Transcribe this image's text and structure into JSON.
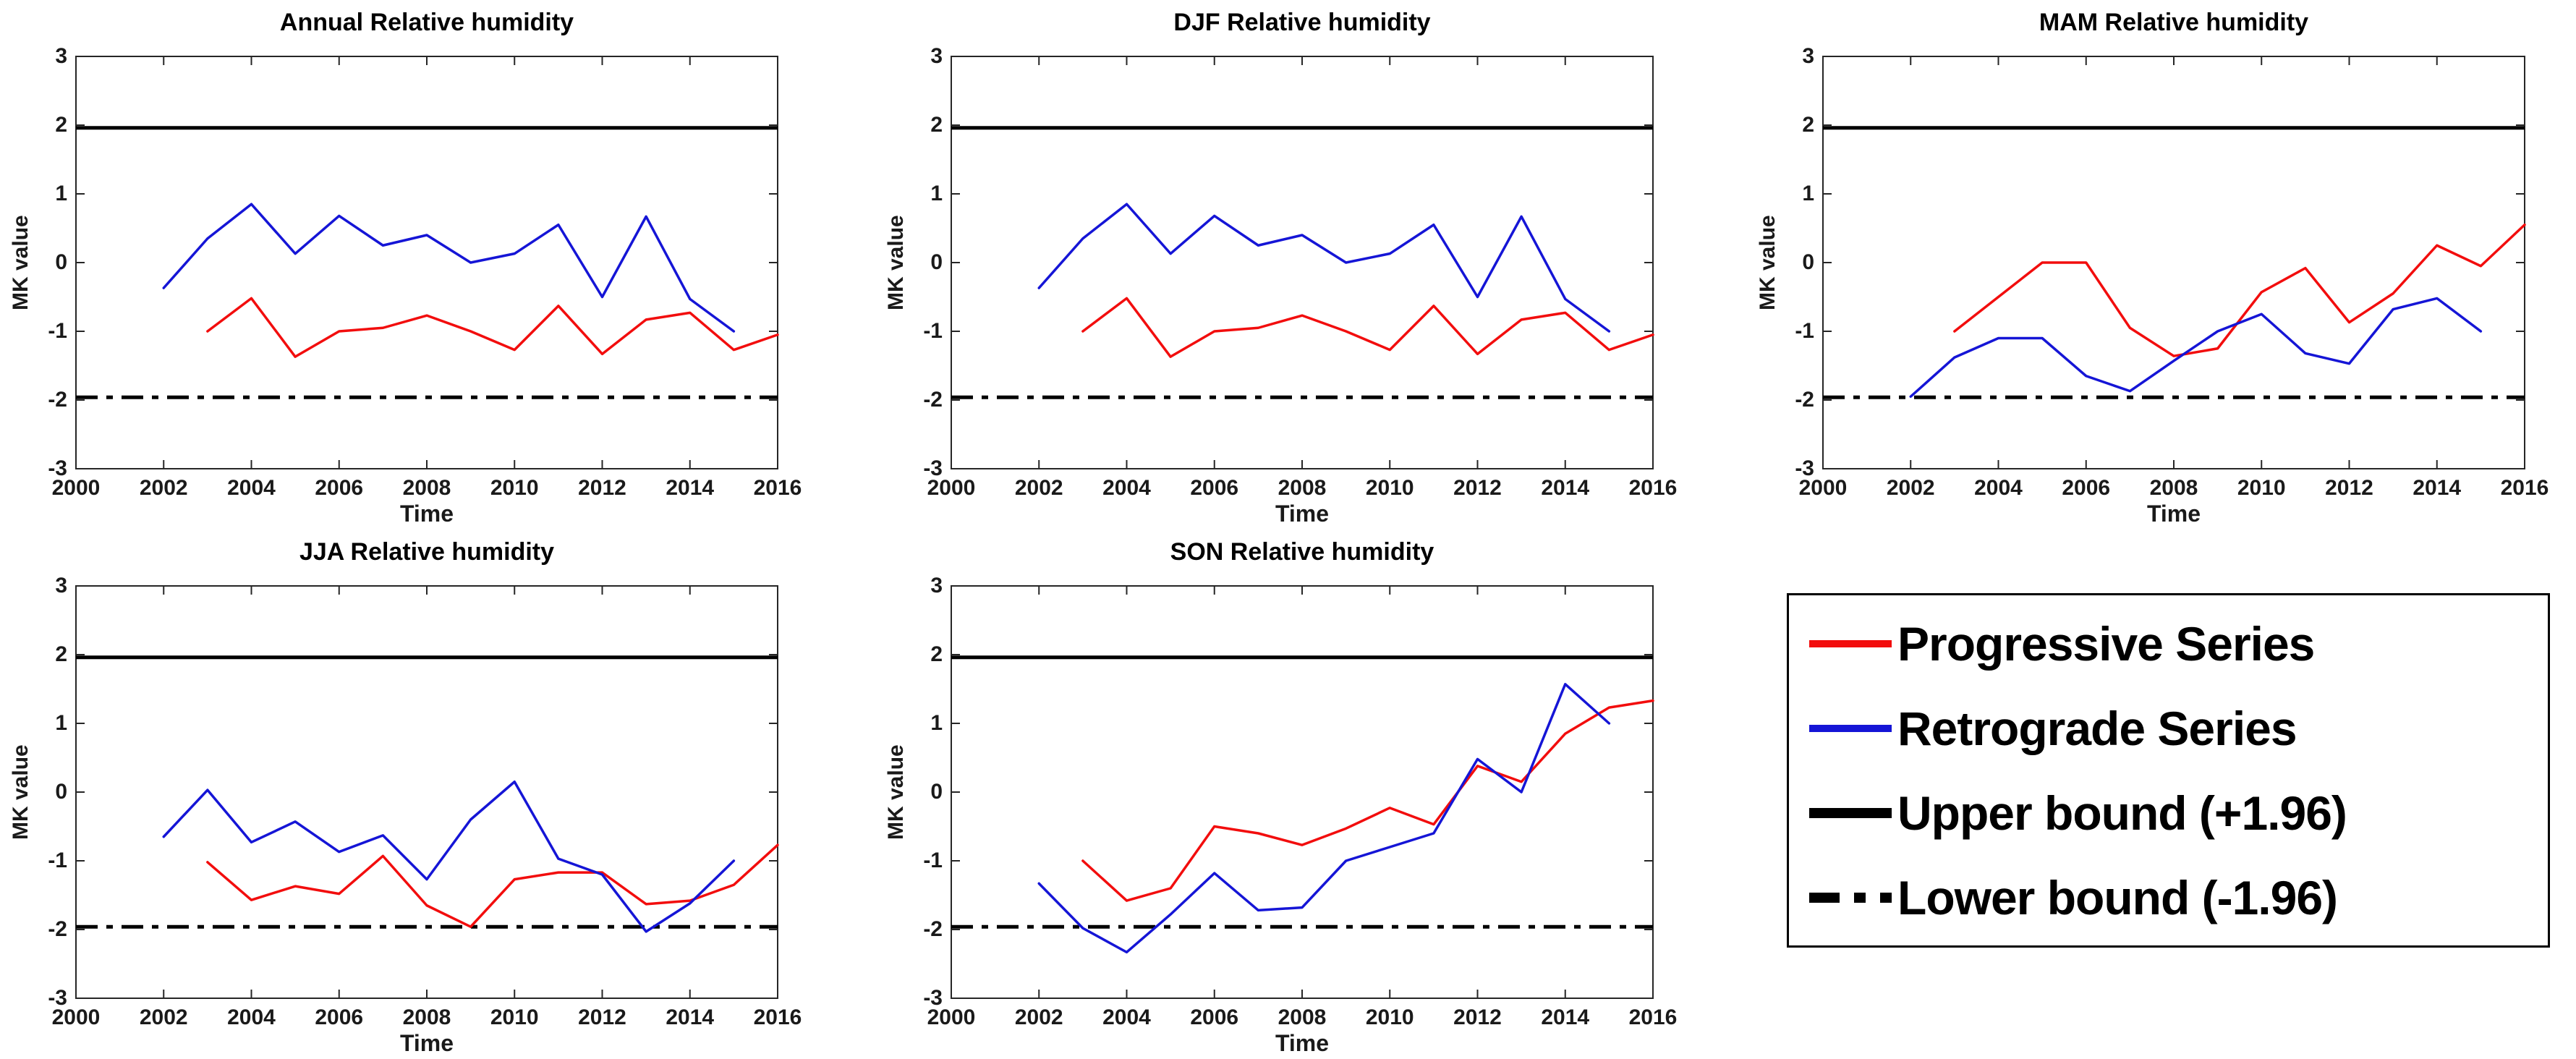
{
  "figure": {
    "background": "#ffffff",
    "axis_color": "#262626",
    "xlabel": "Time",
    "ylabel": "MK value"
  },
  "chart_data": [
    {
      "type": "line",
      "title": "Annual Relative humidity",
      "xlabel": "Time",
      "ylabel": "MK value",
      "xlim": [
        2000,
        2016
      ],
      "ylim": [
        -3,
        3
      ],
      "x_ticks": [
        "2000",
        "2002",
        "2004",
        "2006",
        "2008",
        "2010",
        "2012",
        "2014",
        "2016"
      ],
      "y_ticks": [
        "3",
        "2",
        "1",
        "0",
        "-1",
        "-2",
        "-3"
      ],
      "grid": false,
      "upper_bound": 1.96,
      "lower_bound": -1.96,
      "series": [
        {
          "name": "Progressive Series",
          "color": "#f20d0d",
          "x": [
            2003,
            2004,
            2005,
            2006,
            2007,
            2008,
            2009,
            2010,
            2011,
            2012,
            2013,
            2014,
            2015,
            2016
          ],
          "values": [
            -1.0,
            -0.52,
            -1.37,
            -1.0,
            -0.95,
            -0.77,
            -1.0,
            -1.27,
            -0.63,
            -1.33,
            -0.83,
            -0.73,
            -1.27,
            -1.05
          ]
        },
        {
          "name": "Retrograde Series",
          "color": "#1515d6",
          "x": [
            2002,
            2003,
            2004,
            2005,
            2006,
            2007,
            2008,
            2009,
            2010,
            2011,
            2012,
            2013,
            2014,
            2015
          ],
          "values": [
            -0.37,
            0.35,
            0.85,
            0.13,
            0.68,
            0.25,
            0.4,
            0.0,
            0.13,
            0.55,
            -0.5,
            0.67,
            -0.53,
            -1.0
          ]
        }
      ]
    },
    {
      "type": "line",
      "title": "DJF Relative humidity",
      "xlabel": "Time",
      "ylabel": "MK value",
      "xlim": [
        2000,
        2016
      ],
      "ylim": [
        -3,
        3
      ],
      "x_ticks": [
        "2000",
        "2002",
        "2004",
        "2006",
        "2008",
        "2010",
        "2012",
        "2014",
        "2016"
      ],
      "y_ticks": [
        "3",
        "2",
        "1",
        "0",
        "-1",
        "-2",
        "-3"
      ],
      "grid": false,
      "upper_bound": 1.96,
      "lower_bound": -1.96,
      "series": [
        {
          "name": "Progressive Series",
          "color": "#f20d0d",
          "x": [
            2003,
            2004,
            2005,
            2006,
            2007,
            2008,
            2009,
            2010,
            2011,
            2012,
            2013,
            2014,
            2015,
            2016
          ],
          "values": [
            -1.0,
            -0.52,
            -1.37,
            -1.0,
            -0.95,
            -0.77,
            -1.0,
            -1.27,
            -0.63,
            -1.33,
            -0.83,
            -0.73,
            -1.27,
            -1.05
          ]
        },
        {
          "name": "Retrograde Series",
          "color": "#1515d6",
          "x": [
            2002,
            2003,
            2004,
            2005,
            2006,
            2007,
            2008,
            2009,
            2010,
            2011,
            2012,
            2013,
            2014,
            2015
          ],
          "values": [
            -0.37,
            0.35,
            0.85,
            0.13,
            0.68,
            0.25,
            0.4,
            0.0,
            0.13,
            0.55,
            -0.5,
            0.67,
            -0.53,
            -1.0
          ]
        }
      ]
    },
    {
      "type": "line",
      "title": "MAM Relative humidity",
      "xlabel": "Time",
      "ylabel": "MK value",
      "xlim": [
        2000,
        2016
      ],
      "ylim": [
        -3,
        3
      ],
      "x_ticks": [
        "2000",
        "2002",
        "2004",
        "2006",
        "2008",
        "2010",
        "2012",
        "2014",
        "2016"
      ],
      "y_ticks": [
        "3",
        "2",
        "1",
        "0",
        "-1",
        "-2",
        "-3"
      ],
      "grid": false,
      "upper_bound": 1.96,
      "lower_bound": -1.96,
      "series": [
        {
          "name": "Progressive Series",
          "color": "#f20d0d",
          "x": [
            2003,
            2004,
            2005,
            2006,
            2007,
            2008,
            2009,
            2010,
            2011,
            2012,
            2013,
            2014,
            2015,
            2016
          ],
          "values": [
            -1.0,
            -0.5,
            0.0,
            0.0,
            -0.95,
            -1.36,
            -1.25,
            -0.43,
            -0.08,
            -0.87,
            -0.45,
            0.25,
            -0.05,
            0.55
          ]
        },
        {
          "name": "Retrograde Series",
          "color": "#1515d6",
          "x": [
            2002,
            2003,
            2004,
            2005,
            2006,
            2007,
            2008,
            2009,
            2010,
            2011,
            2012,
            2013,
            2014,
            2015
          ],
          "values": [
            -1.95,
            -1.38,
            -1.1,
            -1.1,
            -1.65,
            -1.87,
            -1.43,
            -1.0,
            -0.75,
            -1.32,
            -1.47,
            -0.68,
            -0.52,
            -1.0
          ]
        }
      ]
    },
    {
      "type": "line",
      "title": "JJA Relative humidity",
      "xlabel": "Time",
      "ylabel": "MK value",
      "xlim": [
        2000,
        2016
      ],
      "ylim": [
        -3,
        3
      ],
      "x_ticks": [
        "2000",
        "2002",
        "2004",
        "2006",
        "2008",
        "2010",
        "2012",
        "2014",
        "2016"
      ],
      "y_ticks": [
        "3",
        "2",
        "1",
        "0",
        "-1",
        "-2",
        "-3"
      ],
      "grid": false,
      "upper_bound": 1.96,
      "lower_bound": -1.96,
      "series": [
        {
          "name": "Progressive Series",
          "color": "#f20d0d",
          "x": [
            2003,
            2004,
            2005,
            2006,
            2007,
            2008,
            2009,
            2010,
            2011,
            2012,
            2013,
            2014,
            2015,
            2016
          ],
          "values": [
            -1.02,
            -1.57,
            -1.37,
            -1.48,
            -0.93,
            -1.65,
            -1.96,
            -1.27,
            -1.17,
            -1.17,
            -1.63,
            -1.58,
            -1.35,
            -0.77
          ]
        },
        {
          "name": "Retrograde Series",
          "color": "#1515d6",
          "x": [
            2002,
            2003,
            2004,
            2005,
            2006,
            2007,
            2008,
            2009,
            2010,
            2011,
            2012,
            2013,
            2014,
            2015
          ],
          "values": [
            -0.65,
            0.03,
            -0.73,
            -0.43,
            -0.87,
            -0.63,
            -1.27,
            -0.4,
            0.15,
            -0.97,
            -1.2,
            -2.03,
            -1.62,
            -1.0
          ]
        }
      ]
    },
    {
      "type": "line",
      "title": "SON Relative humidity",
      "xlabel": "Time",
      "ylabel": "MK value",
      "xlim": [
        2000,
        2016
      ],
      "ylim": [
        -3,
        3
      ],
      "x_ticks": [
        "2000",
        "2002",
        "2004",
        "2006",
        "2008",
        "2010",
        "2012",
        "2014",
        "2016"
      ],
      "y_ticks": [
        "3",
        "2",
        "1",
        "0",
        "-1",
        "-2",
        "-3"
      ],
      "grid": false,
      "upper_bound": 1.96,
      "lower_bound": -1.96,
      "series": [
        {
          "name": "Progressive Series",
          "color": "#f20d0d",
          "x": [
            2003,
            2004,
            2005,
            2006,
            2007,
            2008,
            2009,
            2010,
            2011,
            2012,
            2013,
            2014,
            2015,
            2016
          ],
          "values": [
            -1.0,
            -1.58,
            -1.4,
            -0.5,
            -0.6,
            -0.77,
            -0.53,
            -0.23,
            -0.47,
            0.38,
            0.15,
            0.85,
            1.23,
            1.33
          ]
        },
        {
          "name": "Retrograde Series",
          "color": "#1515d6",
          "x": [
            2002,
            2003,
            2004,
            2005,
            2006,
            2007,
            2008,
            2009,
            2010,
            2011,
            2012,
            2013,
            2014,
            2015
          ],
          "values": [
            -1.33,
            -1.98,
            -2.33,
            -1.78,
            -1.18,
            -1.72,
            -1.68,
            -1.0,
            -0.8,
            -0.6,
            0.48,
            0.0,
            1.57,
            1.0
          ]
        }
      ]
    }
  ],
  "legend": {
    "position": "bottom-right",
    "items": [
      {
        "label": "Progressive Series",
        "line_color": "#f20d0d",
        "line_style": "solid",
        "line_width": 10
      },
      {
        "label": "Retrograde Series",
        "line_color": "#1515d6",
        "line_style": "solid",
        "line_width": 10
      },
      {
        "label": "Upper bound (+1.96)",
        "line_color": "#000000",
        "line_style": "solid",
        "line_width": 14
      },
      {
        "label": "Lower bound (-1.96)",
        "line_color": "#000000",
        "line_style": "dashdot",
        "line_width": 14
      }
    ]
  }
}
